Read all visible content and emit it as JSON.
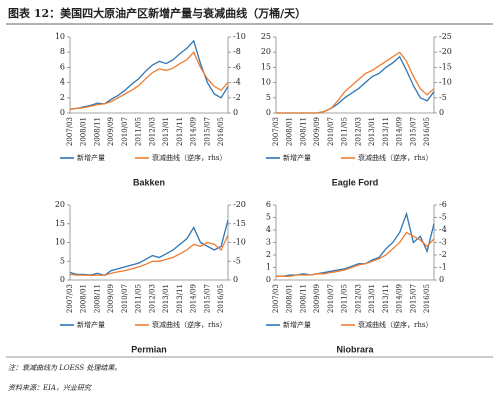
{
  "title": "图表 12：美国四大原油产区新增产量与衰减曲线（万桶/天）",
  "notes": [
    "注：衰减曲线为 LOESS 处理结果。",
    "资料来源：EIA，兴业研究"
  ],
  "chart_data": [
    {
      "type": "line",
      "title": "Bakken",
      "categories": [
        "2007/03",
        null,
        "2008/01",
        null,
        "2008/11",
        null,
        "2009/09",
        null,
        "2010/07",
        null,
        "2011/05",
        null,
        "2012/03",
        null,
        "2013/01",
        null,
        "2013/11",
        null,
        "2014/09",
        null,
        "2015/07",
        null,
        "2016/05",
        null
      ],
      "series": [
        {
          "name": "新增产量",
          "color": "#2e75b6",
          "values": [
            0.5,
            0.6,
            0.8,
            1.0,
            1.3,
            1.2,
            1.8,
            2.3,
            3.0,
            3.8,
            4.5,
            5.5,
            6.3,
            6.8,
            6.5,
            7.0,
            7.8,
            8.5,
            9.5,
            6.5,
            4.0,
            2.5,
            2.0,
            3.5
          ]
        },
        {
          "name": "衰减曲线（逆序，rhs）",
          "color": "#ed7d31",
          "axis": "y2",
          "values": [
            -0.5,
            -0.6,
            -0.7,
            -0.9,
            -1.1,
            -1.2,
            -1.5,
            -2.0,
            -2.5,
            -3.0,
            -3.6,
            -4.5,
            -5.3,
            -5.8,
            -5.6,
            -5.9,
            -6.5,
            -7.0,
            -8.0,
            -6.0,
            -4.5,
            -3.5,
            -3.0,
            -4.0
          ]
        }
      ],
      "ylim": [
        0,
        10
      ],
      "yticks": [
        0,
        2,
        4,
        6,
        8,
        10
      ],
      "y2lim": [
        0,
        -10
      ],
      "y2ticks": [
        -10,
        -8,
        -6,
        -4,
        -2,
        0
      ]
    },
    {
      "type": "line",
      "title": "Eagle Ford",
      "categories": [
        "2007/03",
        null,
        "2008/01",
        null,
        "2008/11",
        null,
        "2009/09",
        null,
        "2010/07",
        null,
        "2011/05",
        null,
        "2012/03",
        null,
        "2013/01",
        null,
        "2013/11",
        null,
        "2014/09",
        null,
        "2015/07",
        null,
        "2016/05",
        null
      ],
      "series": [
        {
          "name": "新增产量",
          "color": "#2e75b6",
          "values": [
            0,
            0,
            0,
            0,
            0,
            0,
            0,
            0.5,
            1.5,
            3,
            5,
            6.5,
            8,
            10,
            12,
            13,
            15,
            16.5,
            18.5,
            14,
            9,
            5,
            4,
            7
          ]
        },
        {
          "name": "衰减曲线（逆序，rhs）",
          "color": "#ed7d31",
          "axis": "y2",
          "values": [
            0,
            0,
            0,
            0,
            0,
            0,
            0,
            -0.5,
            -1.5,
            -4,
            -7,
            -9,
            -11,
            -13,
            -14,
            -15.5,
            -17,
            -18.5,
            -20,
            -17,
            -12,
            -8,
            -6,
            -8
          ]
        }
      ],
      "ylim": [
        0,
        25
      ],
      "yticks": [
        0,
        5,
        10,
        15,
        20,
        25
      ],
      "y2lim": [
        0,
        -25
      ],
      "y2ticks": [
        -25,
        -20,
        -15,
        -10,
        -5,
        0
      ]
    },
    {
      "type": "line",
      "title": "Permian",
      "categories": [
        "2007/03",
        null,
        "2008/01",
        null,
        "2008/11",
        null,
        "2009/09",
        null,
        "2010/07",
        null,
        "2011/05",
        null,
        "2012/03",
        null,
        "2013/01",
        null,
        "2013/11",
        null,
        "2014/09",
        null,
        "2015/07",
        null,
        "2016/05",
        null
      ],
      "series": [
        {
          "name": "新增产量",
          "color": "#2e75b6",
          "values": [
            2,
            1.5,
            1.5,
            1.3,
            1.8,
            1.2,
            2.5,
            3,
            3.5,
            4,
            4.5,
            5.5,
            6.5,
            6,
            7,
            8,
            9.5,
            11,
            14,
            10,
            9,
            8,
            9,
            16
          ]
        },
        {
          "name": "衰减曲线（逆序，rhs）",
          "color": "#ed7d31",
          "axis": "y2",
          "values": [
            -1.5,
            -1.3,
            -1.3,
            -1.2,
            -1.3,
            -1.2,
            -1.8,
            -2.2,
            -2.5,
            -3,
            -3.5,
            -4.2,
            -5,
            -5,
            -5.5,
            -6,
            -7,
            -8,
            -9.5,
            -9,
            -10,
            -9.5,
            -8,
            -12
          ]
        }
      ],
      "ylim": [
        0,
        20
      ],
      "yticks": [
        0,
        5,
        10,
        15,
        20
      ],
      "y2lim": [
        0,
        -20
      ],
      "y2ticks": [
        -20,
        -15,
        -10,
        -5,
        0
      ]
    },
    {
      "type": "line",
      "title": "Niobrara",
      "categories": [
        "2007/03",
        null,
        "2008/01",
        null,
        "2008/11",
        null,
        "2009/09",
        null,
        "2010/07",
        null,
        "2011/05",
        null,
        "2012/03",
        null,
        "2013/01",
        null,
        "2013/11",
        null,
        "2014/09",
        null,
        "2015/07",
        null,
        "2016/05",
        null
      ],
      "series": [
        {
          "name": "新增产量",
          "color": "#2e75b6",
          "values": [
            0.3,
            0.3,
            0.4,
            0.4,
            0.5,
            0.4,
            0.5,
            0.6,
            0.7,
            0.8,
            0.9,
            1.1,
            1.3,
            1.3,
            1.6,
            1.8,
            2.5,
            3.0,
            3.8,
            5.3,
            3.0,
            3.5,
            2.3,
            4.5
          ]
        },
        {
          "name": "衰减曲线（逆序，rhs）",
          "color": "#ed7d31",
          "axis": "y2",
          "values": [
            -0.3,
            -0.3,
            -0.3,
            -0.4,
            -0.4,
            -0.4,
            -0.5,
            -0.5,
            -0.6,
            -0.7,
            -0.8,
            -1.0,
            -1.2,
            -1.3,
            -1.5,
            -1.7,
            -2.0,
            -2.5,
            -3.0,
            -3.8,
            -3.5,
            -3.2,
            -2.7,
            -3.3
          ]
        }
      ],
      "ylim": [
        0,
        6
      ],
      "yticks": [
        0,
        1,
        2,
        3,
        4,
        5,
        6
      ],
      "y2lim": [
        0,
        -6
      ],
      "y2ticks": [
        -6,
        -5,
        -4,
        -3,
        -2,
        -1,
        0
      ]
    }
  ]
}
